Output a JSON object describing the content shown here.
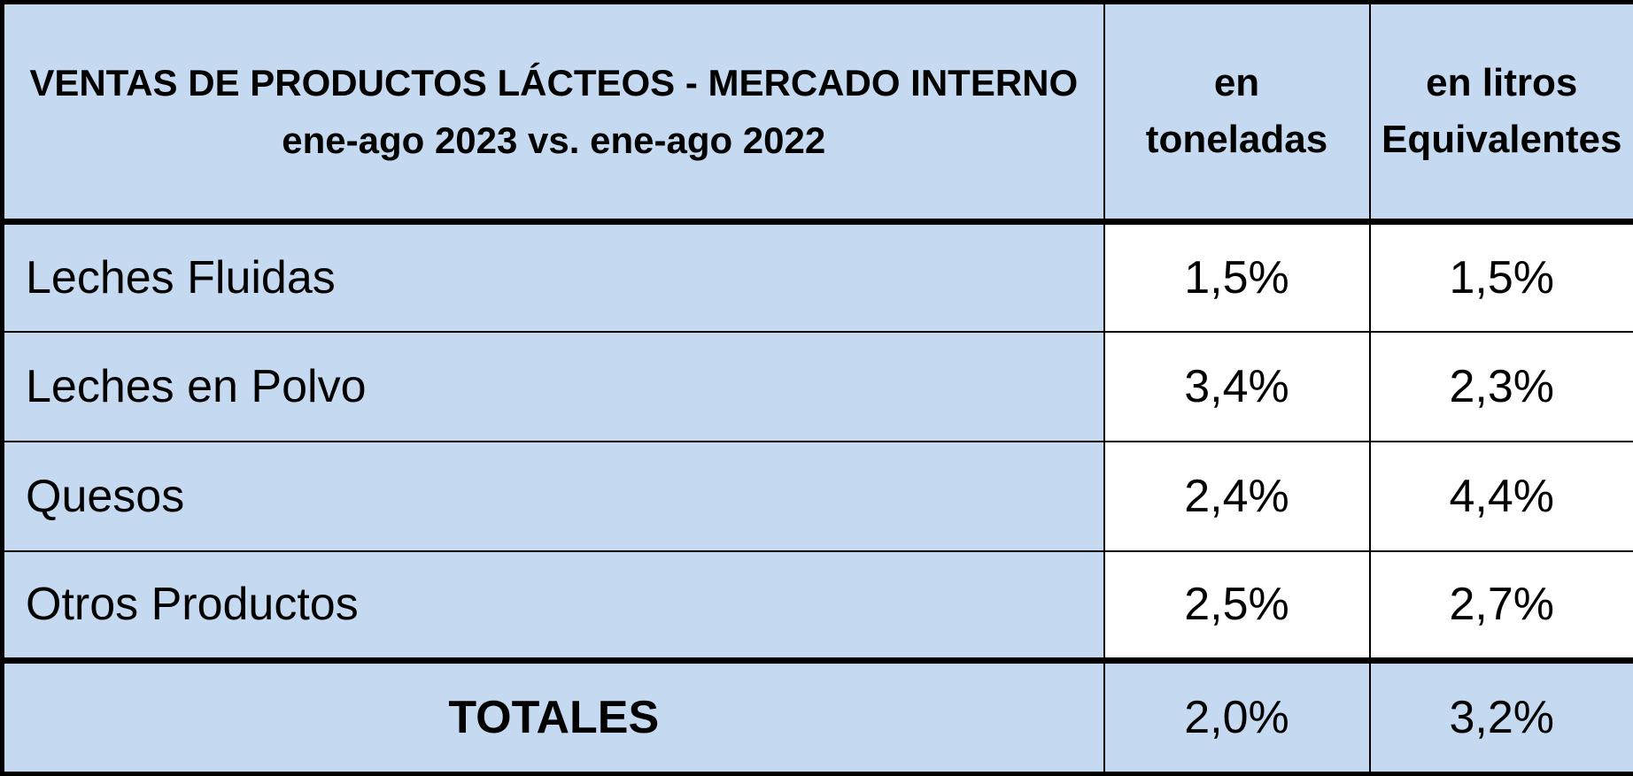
{
  "chart_data": {
    "type": "table",
    "title": "VENTAS DE PRODUCTOS LÁCTEOS - MERCADO INTERNO",
    "subtitle": "ene-ago 2023 vs. ene-ago 2022",
    "columns": [
      {
        "line1": "en",
        "line2": "toneladas"
      },
      {
        "line1": "en litros",
        "line2": "Equivalentes"
      }
    ],
    "rows": [
      {
        "label": "Leches Fluidas",
        "values": [
          "1,5%",
          "1,5%"
        ]
      },
      {
        "label": "Leches en Polvo",
        "values": [
          "3,4%",
          "2,3%"
        ]
      },
      {
        "label": "Quesos",
        "values": [
          "2,4%",
          "4,4%"
        ]
      },
      {
        "label": "Otros Productos",
        "values": [
          "2,5%",
          "2,7%"
        ]
      }
    ],
    "total": {
      "label": "TOTALES",
      "values": [
        "2,0%",
        "3,2%"
      ]
    },
    "colors": {
      "header_fill": "#c5d9f1",
      "value_fill": "#ffffff",
      "border": "#000000"
    }
  }
}
